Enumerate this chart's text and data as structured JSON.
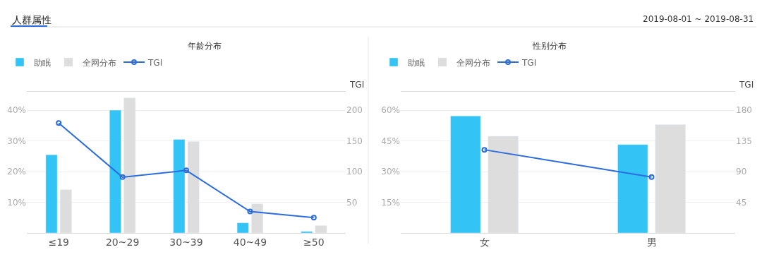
{
  "chart_data": [
    {
      "type": "bar",
      "title": "年龄分布",
      "categories": [
        "≤19",
        "20~29",
        "30~39",
        "40~49",
        "≥50"
      ],
      "series": [
        {
          "name": "助眠",
          "color": "#33c3f5",
          "values": [
            25.5,
            40,
            30.5,
            3.3,
            0.5
          ]
        },
        {
          "name": "全网分布",
          "color": "#dddddd",
          "values": [
            14.1,
            44,
            29.8,
            9.5,
            2.4
          ]
        },
        {
          "name": "TGI",
          "type": "line",
          "axis": "y2",
          "color": "#2b6de0",
          "marker": "circle",
          "values": [
            179,
            91,
            102,
            35,
            25
          ]
        }
      ],
      "ylim": [
        0,
        46
      ],
      "yticks": [
        {
          "value": 0,
          "label": null
        },
        {
          "value": 10,
          "label": "10%"
        },
        {
          "value": 20,
          "label": "20%"
        },
        {
          "value": 30,
          "label": "30%"
        },
        {
          "value": 40,
          "label": "40%"
        }
      ],
      "y2lim": [
        0,
        230
      ],
      "y2ticks": [
        50,
        100,
        150,
        200
      ],
      "y2label": "TGI",
      "grid": "y",
      "legend": "top left",
      "annotations": [
        "人群属性",
        "2019-08-01 ~ 2019-08-31"
      ]
    },
    {
      "type": "bar",
      "title": "性别分布",
      "categories": [
        "女",
        "男"
      ],
      "series": [
        {
          "name": "助眠",
          "color": "#33c3f5",
          "values": [
            57.2,
            43.2
          ]
        },
        {
          "name": "全网分布",
          "color": "#dddddd",
          "values": [
            47.3,
            53
          ]
        },
        {
          "name": "TGI",
          "type": "line",
          "axis": "y2",
          "color": "#2b6de0",
          "marker": "circle",
          "values": [
            122,
            82
          ]
        }
      ],
      "ylim": [
        0,
        69
      ],
      "yticks": [
        {
          "value": 0,
          "label": null
        },
        {
          "value": 15,
          "label": "15%"
        },
        {
          "value": 30,
          "label": "30%"
        },
        {
          "value": 45,
          "label": "45%"
        },
        {
          "value": 60,
          "label": "60%"
        }
      ],
      "y2lim": [
        0,
        207
      ],
      "y2ticks": [
        45,
        90,
        135,
        180
      ],
      "y2label": "TGI",
      "grid": "y",
      "legend": "top left"
    }
  ]
}
